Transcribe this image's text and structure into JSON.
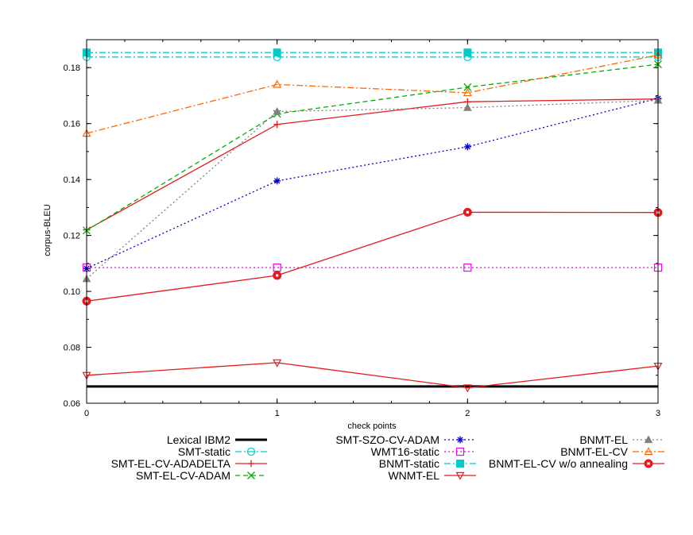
{
  "chart_data": {
    "type": "line",
    "title": "",
    "xlabel": "check points",
    "ylabel": "corpus-BLEU",
    "x": [
      0,
      1,
      2,
      3
    ],
    "xlim": [
      0,
      3
    ],
    "ylim": [
      0.06,
      0.19
    ],
    "yticks": [
      0.06,
      0.08,
      0.1,
      0.12,
      0.14,
      0.16,
      0.18
    ],
    "ytick_labels": [
      "0.06",
      "0.08",
      "0.10",
      "0.12",
      "0.14",
      "0.16",
      "0.18"
    ],
    "xticks": [
      0,
      1,
      2,
      3
    ],
    "xtick_labels": [
      "0",
      "1",
      "2",
      "3"
    ],
    "grid": false,
    "legend_placement": "bottom",
    "series": [
      {
        "name": "Lexical IBM2",
        "values": [
          0.066,
          0.066,
          0.066,
          0.066
        ],
        "color": "#000000",
        "dash": "solid",
        "marker": "none",
        "width": 3
      },
      {
        "name": "SMT-static",
        "values": [
          0.1838,
          0.1838,
          0.1838,
          0.1838
        ],
        "color": "#00cccc",
        "dash": "dashdot",
        "marker": "circle-open"
      },
      {
        "name": "SMT-EL-CV-ADADELTA",
        "values": [
          0.122,
          0.1597,
          0.1678,
          0.1688
        ],
        "color": "#e41a1c",
        "dash": "solid",
        "marker": "plus"
      },
      {
        "name": "SMT-EL-CV-ADAM",
        "values": [
          0.1218,
          0.1635,
          0.173,
          0.1812
        ],
        "color": "#00b000",
        "dash": "dashed",
        "marker": "x"
      },
      {
        "name": "SMT-SZO-CV-ADAM",
        "values": [
          0.1082,
          0.1395,
          0.1517,
          0.169
        ],
        "color": "#0000cc",
        "dash": "dotted",
        "marker": "star"
      },
      {
        "name": "WMT16-static",
        "values": [
          0.1085,
          0.1085,
          0.1085,
          0.1085
        ],
        "color": "#ee00ee",
        "dash": "dotted",
        "marker": "square-open"
      },
      {
        "name": "BNMT-static",
        "values": [
          0.1854,
          0.1854,
          0.1854,
          0.1854
        ],
        "color": "#00cccc",
        "dash": "dashdot",
        "marker": "square-filled"
      },
      {
        "name": "WNMT-EL",
        "values": [
          0.07,
          0.0745,
          0.0655,
          0.0733
        ],
        "color": "#e41a1c",
        "dash": "solid",
        "marker": "triangle-down-open"
      },
      {
        "name": "BNMT-EL",
        "values": [
          0.1045,
          0.1643,
          0.1657,
          0.1683
        ],
        "color": "#808080",
        "dash": "dotted",
        "marker": "triangle-filled"
      },
      {
        "name": "BNMT-EL-CV",
        "values": [
          0.1565,
          0.174,
          0.171,
          0.1845
        ],
        "color": "#ff6600",
        "dash": "dashdot",
        "marker": "triangle-open"
      },
      {
        "name": "BNMT-EL-CV w/o annealing",
        "values": [
          0.0965,
          0.1057,
          0.1283,
          0.1282
        ],
        "color": "#e41a1c",
        "dash": "solid",
        "marker": "circle-filled"
      }
    ]
  }
}
